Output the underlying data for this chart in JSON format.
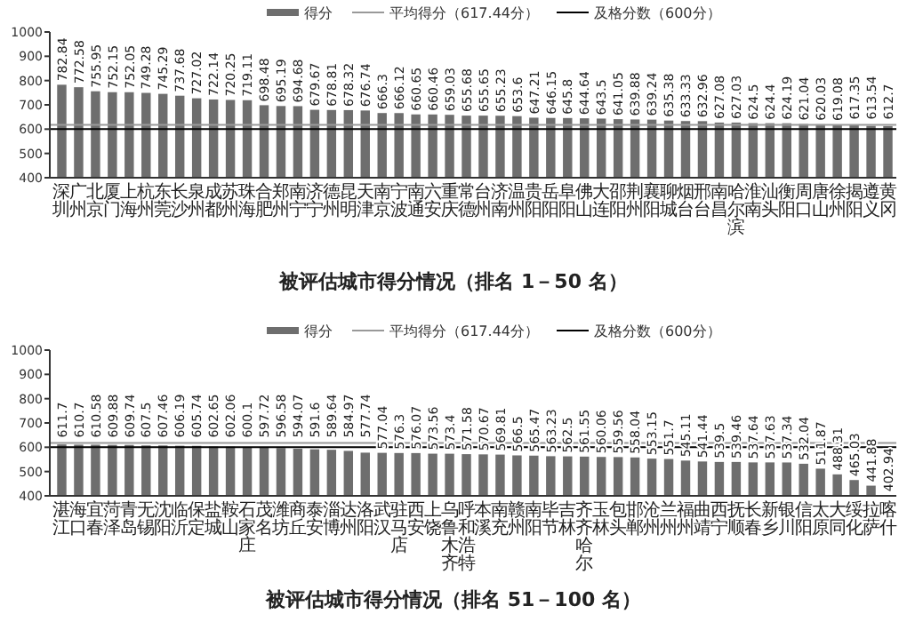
{
  "chart_data": [
    {
      "type": "bar",
      "title": "被评估城市得分情况（排名 1－50 名）",
      "categories": [
        "深圳",
        "广州",
        "北京",
        "厦门",
        "上海",
        "杭州",
        "东莞",
        "长沙",
        "泉州",
        "成都",
        "苏州",
        "珠海",
        "合肥",
        "郑州",
        "南宁",
        "济宁",
        "德州",
        "昆明",
        "天津",
        "南京",
        "宁波",
        "南通",
        "六安",
        "重庆",
        "常德",
        "台州",
        "济南",
        "温州",
        "贵阳",
        "岳阳",
        "阜阳",
        "佛山",
        "大连",
        "邵阳",
        "荆州",
        "襄阳",
        "聊城",
        "烟台",
        "邢台",
        "南昌",
        "哈尔滨",
        "淮南",
        "汕头",
        "衡阳",
        "周口",
        "唐山",
        "徐州",
        "揭阳",
        "遵义",
        "黄冈"
      ],
      "series": [
        {
          "name": "得分",
          "color": "#6e6e6e",
          "values": [
            782.84,
            772.58,
            755.95,
            752.15,
            752.05,
            749.28,
            745.29,
            737.68,
            727.02,
            722.14,
            720.25,
            719.11,
            698.48,
            695.19,
            694.68,
            679.67,
            678.81,
            678.32,
            676.74,
            666.3,
            666.12,
            660.65,
            660.46,
            659.03,
            655.68,
            655.65,
            655.23,
            653.6,
            647.21,
            646.15,
            645.8,
            644.64,
            643.5,
            641.05,
            639.88,
            639.24,
            635.38,
            633.33,
            632.96,
            627.08,
            627.03,
            624.5,
            624.4,
            624.19,
            621.04,
            620.03,
            619.08,
            617.35,
            613.54,
            612.7
          ]
        }
      ],
      "data_labels": true,
      "ylim": [
        400,
        1000
      ],
      "yticks": [
        400,
        500,
        600,
        700,
        800,
        900,
        1000
      ],
      "legend": "top",
      "ref_lines": [
        {
          "axis": "y",
          "value": 617.44,
          "label": "平均得分（617.44分）",
          "color": "#999999"
        },
        {
          "axis": "y",
          "value": 600,
          "label": "及格分数（600分）",
          "color": "#000000"
        }
      ]
    },
    {
      "type": "bar",
      "title": "被评估城市得分情况（排名 51－100 名）",
      "categories": [
        "湛江",
        "海口",
        "宜春",
        "菏泽",
        "青岛",
        "无锡",
        "沈阳",
        "临沂",
        "保定",
        "盐城",
        "鞍山",
        "石家庄",
        "茂名",
        "潍坊",
        "商丘",
        "泰安",
        "淄博",
        "达州",
        "洛阳",
        "武汉",
        "驻马店",
        "西安",
        "上饶",
        "乌鲁木齐",
        "呼和浩特",
        "本溪",
        "南充",
        "赣州",
        "南阳",
        "毕节",
        "吉林",
        "齐齐哈尔",
        "玉林",
        "包头",
        "邯郸",
        "沧州",
        "兰州",
        "福州",
        "曲靖",
        "西宁",
        "抚顺",
        "长春",
        "新乡",
        "银川",
        "信阳",
        "太原",
        "大同",
        "绥化",
        "拉萨",
        "喀什"
      ],
      "series": [
        {
          "name": "得分",
          "color": "#6e6e6e",
          "values": [
            611.7,
            610.7,
            610.58,
            609.88,
            609.74,
            607.5,
            607.46,
            606.19,
            605.74,
            602.65,
            602.06,
            600.1,
            597.72,
            596.58,
            594.07,
            591.6,
            589.64,
            584.97,
            577.74,
            577.04,
            576.3,
            576.07,
            573.56,
            573.4,
            571.58,
            570.67,
            569.81,
            566.5,
            565.47,
            563.23,
            562.5,
            561.55,
            560.06,
            559.56,
            558.04,
            553.15,
            551.7,
            545.11,
            541.44,
            539.5,
            539.46,
            537.64,
            537.63,
            537.34,
            532.04,
            511.87,
            488.31,
            465.03,
            441.88,
            402.94
          ]
        }
      ],
      "data_labels": true,
      "ylim": [
        400,
        1000
      ],
      "yticks": [
        400,
        500,
        600,
        700,
        800,
        900,
        1000
      ],
      "legend": "top",
      "ref_lines": [
        {
          "axis": "y",
          "value": 617.44,
          "label": "平均得分（617.44分）",
          "color": "#999999"
        },
        {
          "axis": "y",
          "value": 600,
          "label": "及格分数（600分）",
          "color": "#000000"
        }
      ]
    }
  ]
}
